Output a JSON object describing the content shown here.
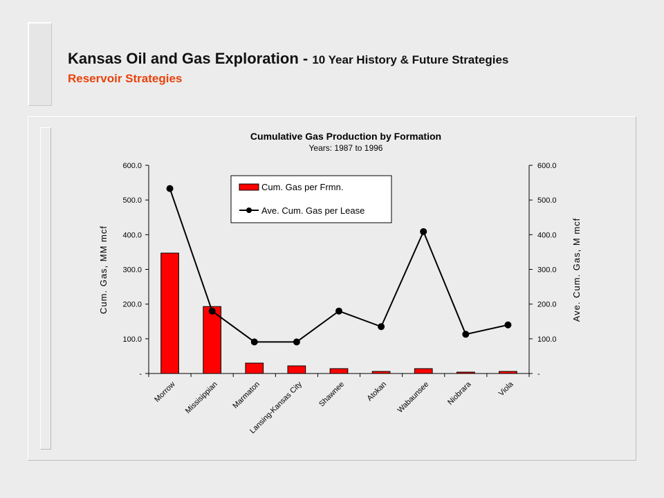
{
  "slide": {
    "title_main": "Kansas Oil and Gas Exploration - ",
    "title_tail": "10 Year History & Future Strategies",
    "subtitle": "Reservoir Strategies"
  },
  "colors": {
    "bar": "#ff0000",
    "line": "#000000",
    "subtitle": "#e8420a"
  },
  "chart_data": {
    "type": "bar",
    "title": "Cumulative Gas Production by Formation",
    "subtitle": "Years: 1987 to 1996",
    "categories": [
      "Morrow",
      "Missisippian",
      "Marmaton",
      "Lansing-Kansas City",
      "Shawnee",
      "Atokan",
      "Wabaunsee",
      "Niobrara",
      "Viola"
    ],
    "series": [
      {
        "name": "Cum. Gas per Frmn.",
        "type": "bar",
        "axis": "left",
        "values": [
          347,
          193,
          30,
          22,
          14,
          6,
          14,
          4,
          6
        ]
      },
      {
        "name": "Ave. Cum. Gas per Lease",
        "type": "line",
        "axis": "right",
        "values": [
          533,
          180,
          91,
          91,
          180,
          135,
          409,
          113,
          140
        ]
      }
    ],
    "ylabel_left": "Cum. Gas, MM mcf",
    "ylabel_right": "Ave. Cum. Gas, M mcf",
    "ylim": [
      0,
      600
    ],
    "yticks": [
      "-",
      "100.0",
      "200.0",
      "300.0",
      "400.0",
      "500.0",
      "600.0"
    ],
    "legend_position": "top-center",
    "grid": false
  }
}
